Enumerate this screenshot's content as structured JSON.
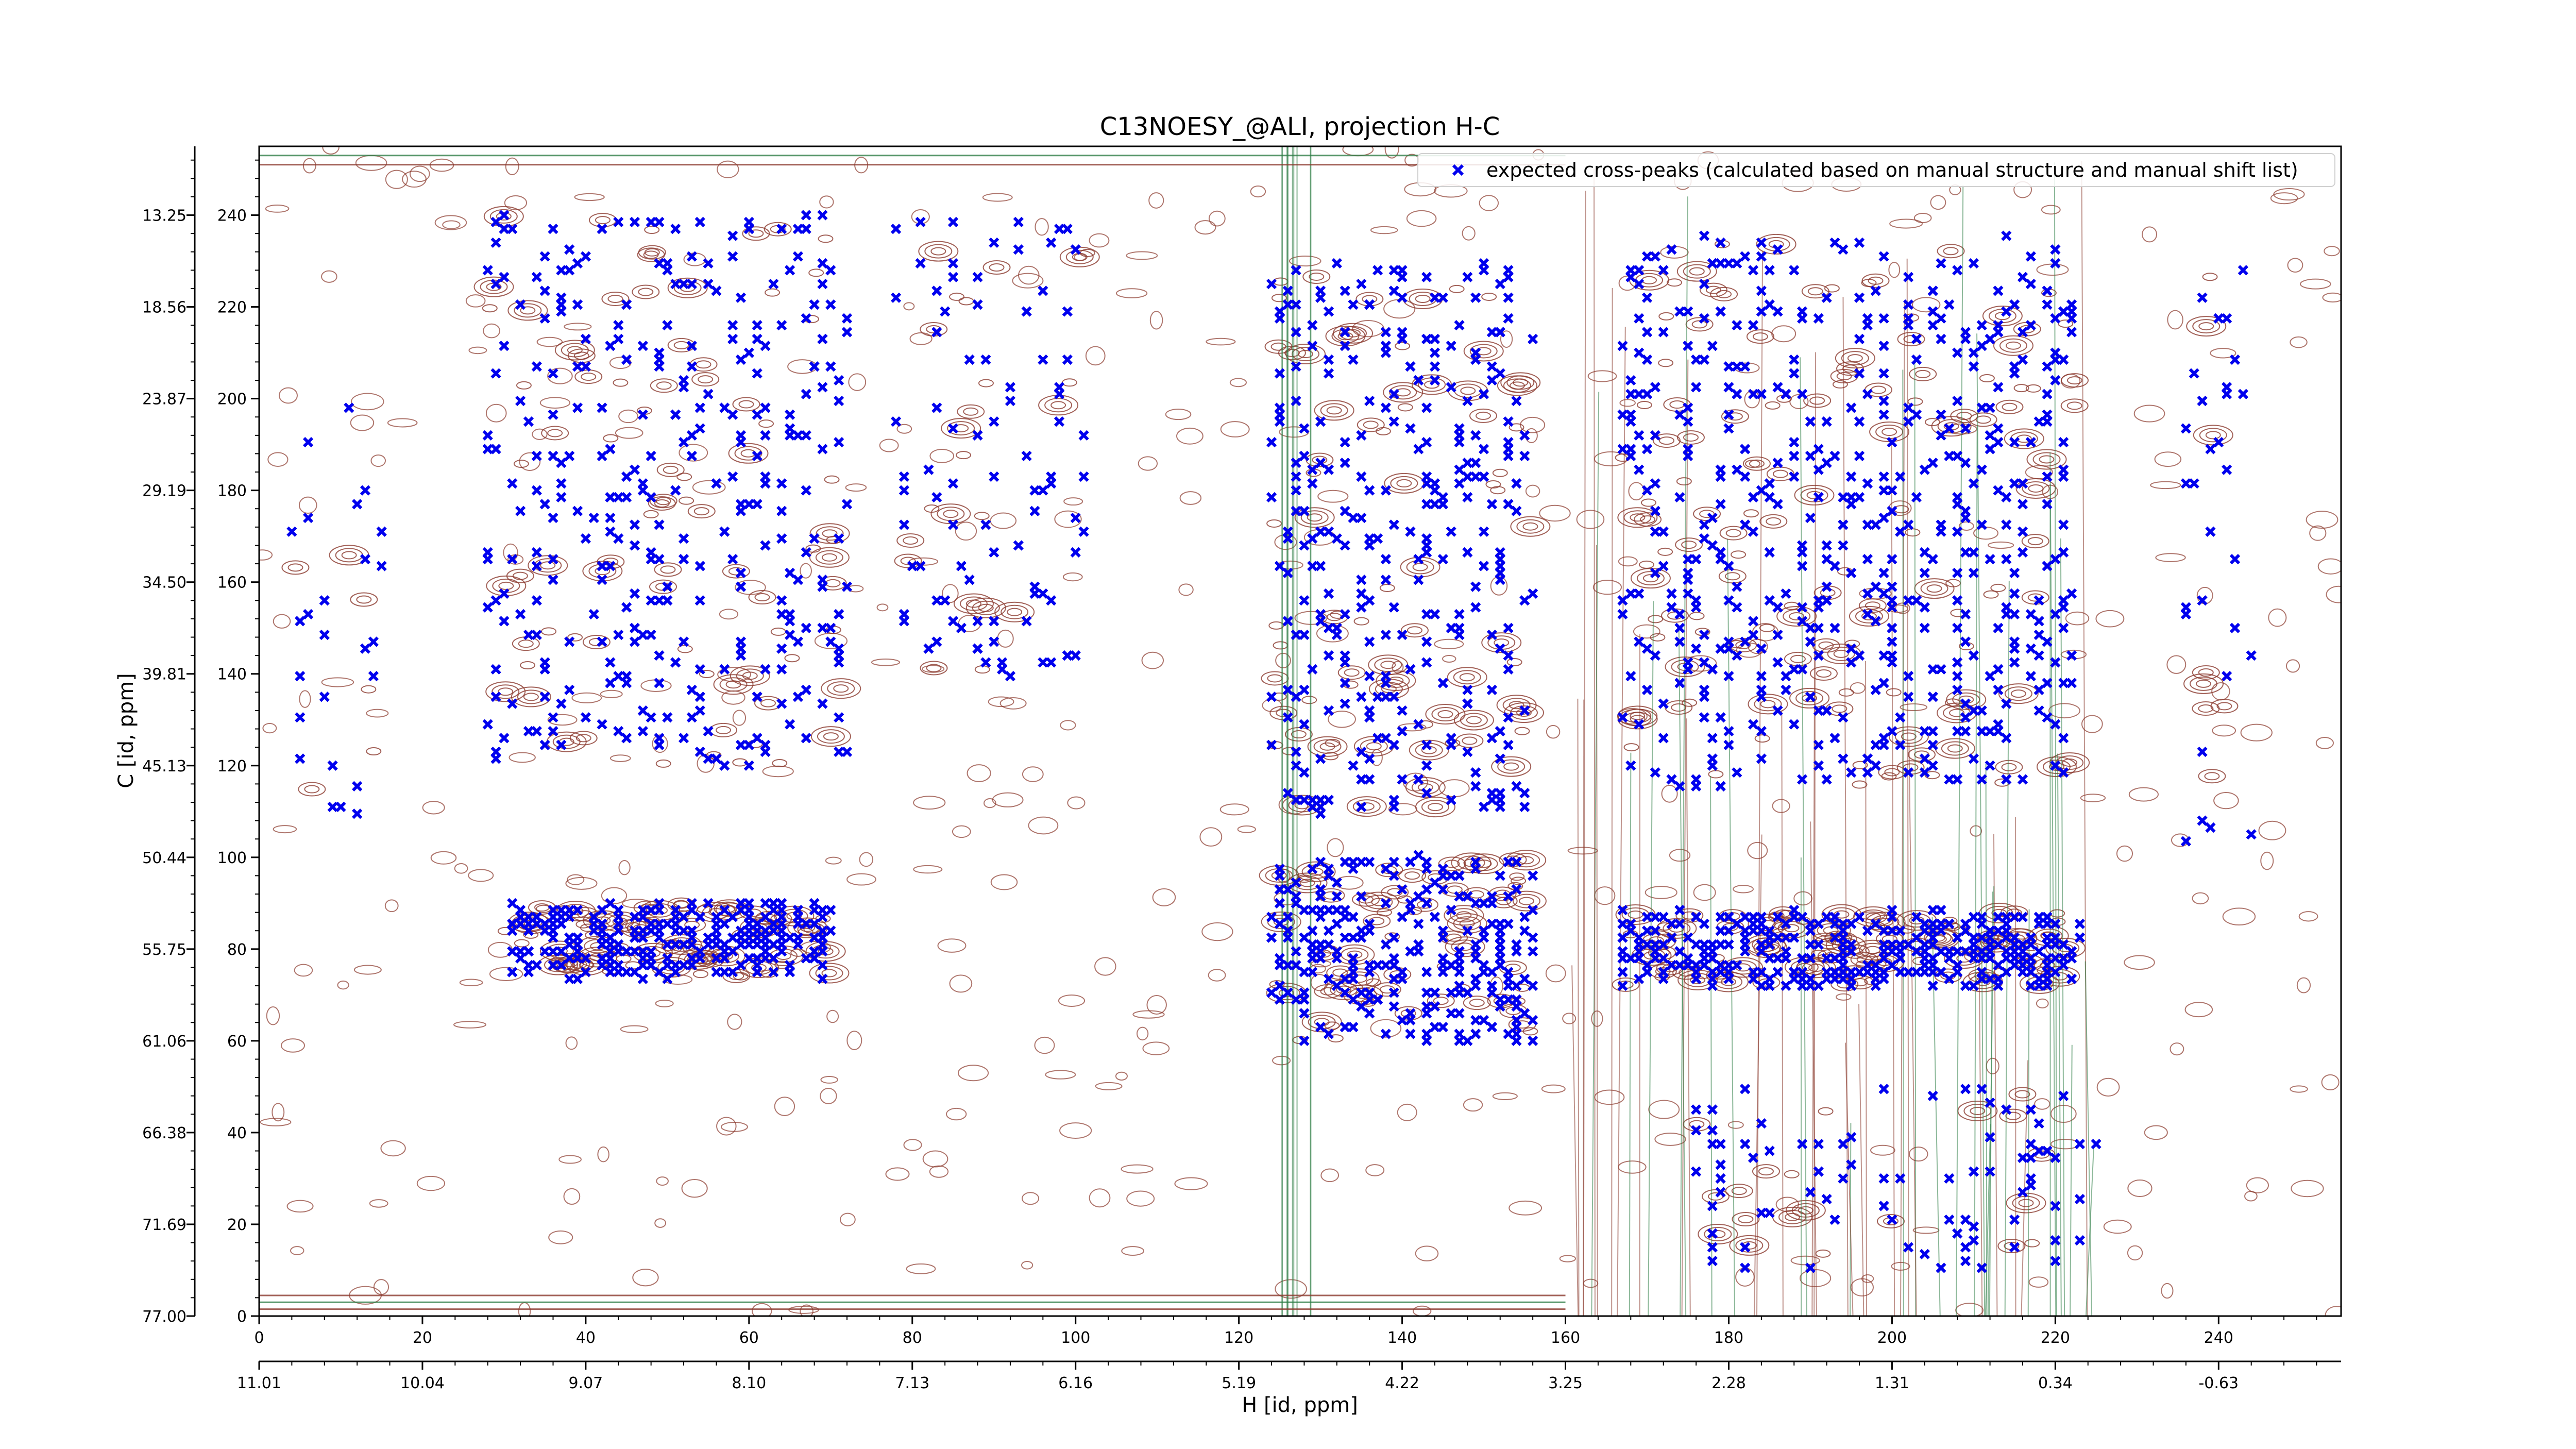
{
  "chart_data": {
    "type": "scatter",
    "title": "C13NOESY_@ALI, projection H-C",
    "xlabel": "H [id, ppm]",
    "ylabel": "C [id, ppm]",
    "x_index_range": [
      0,
      255
    ],
    "y_index_range": [
      0,
      255
    ],
    "x_index_ticks": [
      "0",
      "20",
      "40",
      "60",
      "80",
      "100",
      "120",
      "140",
      "160",
      "180",
      "200",
      "220",
      "240"
    ],
    "x_ppm_ticks": [
      "11.01",
      "10.04",
      "9.07",
      "8.10",
      "7.13",
      "6.16",
      "5.19",
      "4.22",
      "3.25",
      "2.28",
      "1.31",
      "0.34",
      "-0.63"
    ],
    "y_index_ticks": [
      "0",
      "20",
      "40",
      "60",
      "80",
      "100",
      "120",
      "140",
      "160",
      "180",
      "200",
      "220",
      "240"
    ],
    "y_ppm_ticks": [
      "77.00",
      "71.69",
      "66.38",
      "61.06",
      "55.75",
      "50.44",
      "45.13",
      "39.81",
      "34.50",
      "29.19",
      "23.87",
      "18.56",
      "13.25"
    ],
    "legend": {
      "position": "top-right",
      "marker_label": "expected cross-peaks (calculated based on manual structure and manual shift list)"
    },
    "colors": {
      "marker": "#0000ee",
      "positive_contour": "#8b3a2e",
      "negative_contour": "#2e7d46",
      "frame": "#000000"
    },
    "series": [
      {
        "name": "expected cross-peaks (calculated based on manual structure and manual shift list)",
        "marker": "x",
        "clusters": [
          {
            "x_center": 50,
            "y_center": 82,
            "x_spread": 20,
            "y_spread": 8,
            "count": 300
          },
          {
            "x_center": 50,
            "y_center": 180,
            "x_spread": 22,
            "y_spread": 60,
            "count": 320
          },
          {
            "x_center": 90,
            "y_center": 190,
            "x_spread": 12,
            "y_spread": 50,
            "count": 90
          },
          {
            "x_center": 140,
            "y_center": 80,
            "x_spread": 16,
            "y_spread": 20,
            "count": 260
          },
          {
            "x_center": 140,
            "y_center": 170,
            "x_spread": 16,
            "y_spread": 60,
            "count": 300
          },
          {
            "x_center": 195,
            "y_center": 80,
            "x_spread": 28,
            "y_spread": 8,
            "count": 380
          },
          {
            "x_center": 195,
            "y_center": 175,
            "x_spread": 28,
            "y_spread": 60,
            "count": 520
          },
          {
            "x_center": 200,
            "y_center": 30,
            "x_spread": 25,
            "y_spread": 20,
            "count": 80
          },
          {
            "x_center": 10,
            "y_center": 150,
            "x_spread": 6,
            "y_spread": 50,
            "count": 25
          },
          {
            "x_center": 240,
            "y_center": 170,
            "x_spread": 4,
            "y_spread": 70,
            "count": 30
          }
        ]
      }
    ]
  }
}
